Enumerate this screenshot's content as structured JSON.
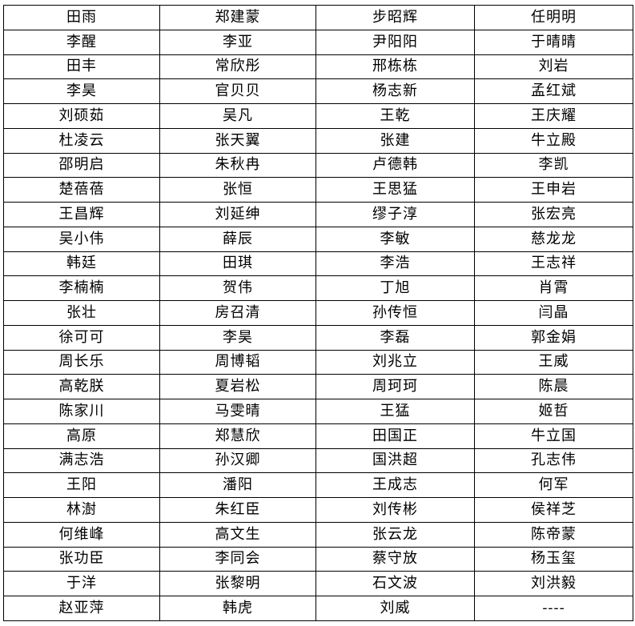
{
  "table": {
    "rows": [
      [
        "田雨",
        "郑建蒙",
        "步昭辉",
        "任明明"
      ],
      [
        "李醒",
        "李亚",
        "尹阳阳",
        "于晴晴"
      ],
      [
        "田丰",
        "常欣彤",
        "邢栋栋",
        "刘岩"
      ],
      [
        "李昊",
        "官贝贝",
        "杨志新",
        "孟红斌"
      ],
      [
        "刘硕茹",
        "吴凡",
        "王乾",
        "王庆耀"
      ],
      [
        "杜凌云",
        "张天翼",
        "张建",
        "牛立殿"
      ],
      [
        "邵明启",
        "朱秋冉",
        "卢德韩",
        "李凯"
      ],
      [
        "楚蓓蓓",
        "张恒",
        "王思猛",
        "王申岩"
      ],
      [
        "王昌辉",
        "刘延绅",
        "缪子淳",
        "张宏亮"
      ],
      [
        "吴小伟",
        "薛辰",
        "李敏",
        "慈龙龙"
      ],
      [
        "韩廷",
        "田琪",
        "李浩",
        "王志祥"
      ],
      [
        "李楠楠",
        "贺伟",
        "丁旭",
        "肖霄"
      ],
      [
        "张壮",
        "房召清",
        "孙传恒",
        "闫晶"
      ],
      [
        "徐可可",
        "李昊",
        "李磊",
        "郭金娟"
      ],
      [
        "周长乐",
        "周博韬",
        "刘兆立",
        "王威"
      ],
      [
        "高乾朕",
        "夏岩松",
        "周珂珂",
        "陈晨"
      ],
      [
        "陈家川",
        "马雯晴",
        "王猛",
        "姬哲"
      ],
      [
        "高原",
        "郑慧欣",
        "田国正",
        "牛立国"
      ],
      [
        "满志浩",
        "孙汉卿",
        "国洪超",
        "孔志伟"
      ],
      [
        "王阳",
        "潘阳",
        "王成志",
        "何军"
      ],
      [
        "林澍",
        "朱红臣",
        "刘传彬",
        "侯祥芝"
      ],
      [
        "何维峰",
        "高文生",
        "张云龙",
        "陈帝蒙"
      ],
      [
        "张功臣",
        "李同会",
        "蔡守放",
        "杨玉玺"
      ],
      [
        "于洋",
        "张黎明",
        "石文波",
        "刘洪毅"
      ],
      [
        "赵亚萍",
        "韩虎",
        "刘威",
        "----"
      ]
    ]
  }
}
